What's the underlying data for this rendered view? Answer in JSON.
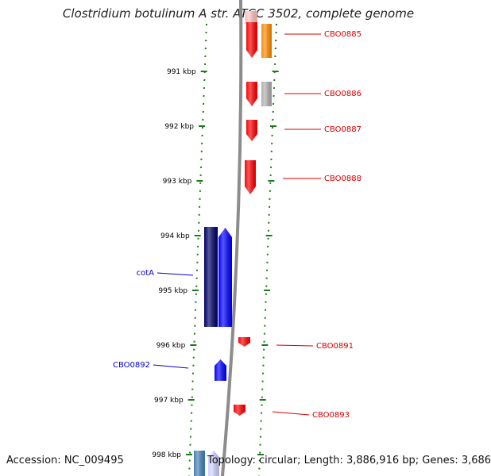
{
  "title": "Clostridium botulinum A str. ATCC 3502, complete genome",
  "footer": {
    "accession": "Accession: NC_009495",
    "summary": "Topology: circular; Length: 3,886,916 bp; Genes: 3,686"
  },
  "colors": {
    "backbone": "#8c8c8c",
    "tick": "#1a7a1a",
    "label_forward": "#d40000",
    "label_reverse": "#0000cc",
    "gene_red": "#ff0000",
    "gene_blue": "#0000ff",
    "gene_navy": "#000066",
    "gene_orange": "#ff8c00",
    "gene_gray": "#b0b0b0",
    "gene_steel": "#4682b4",
    "gene_pink": "#ffc0c0",
    "gene_lavender": "#d0d0ff"
  },
  "ruler": [
    {
      "label": "991 kbp",
      "kbp": 991
    },
    {
      "label": "992 kbp",
      "kbp": 992
    },
    {
      "label": "993 kbp",
      "kbp": 993
    },
    {
      "label": "994 kbp",
      "kbp": 994
    },
    {
      "label": "995 kbp",
      "kbp": 995
    },
    {
      "label": "996 kbp",
      "kbp": 996
    },
    {
      "label": "997 kbp",
      "kbp": 997
    },
    {
      "label": "998 kbp",
      "kbp": 998
    }
  ],
  "gene_labels": [
    {
      "name": "CBO0885",
      "strand": "forward"
    },
    {
      "name": "CBO0886",
      "strand": "forward"
    },
    {
      "name": "CBO0887",
      "strand": "forward"
    },
    {
      "name": "CBO0888",
      "strand": "forward"
    },
    {
      "name": "cotA",
      "strand": "reverse"
    },
    {
      "name": "CBO0891",
      "strand": "forward"
    },
    {
      "name": "CBO0892",
      "strand": "reverse"
    },
    {
      "name": "CBO0893",
      "strand": "forward"
    }
  ]
}
